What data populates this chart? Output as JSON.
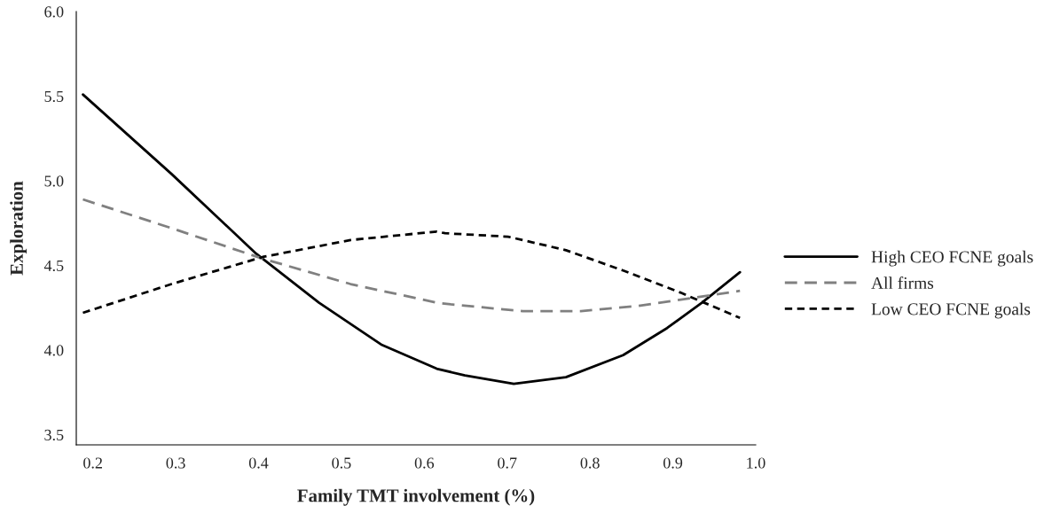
{
  "chart_data": {
    "type": "line",
    "xlabel": "Family TMT involvement (%)",
    "ylabel": "Exploration",
    "xlim": [
      0.18,
      1.0
    ],
    "ylim": [
      3.44,
      6.0
    ],
    "xticks": [
      0.2,
      0.3,
      0.4,
      0.5,
      0.6,
      0.7,
      0.8,
      0.9,
      {
        "value": 1.0,
        "label": "1.0"
      }
    ],
    "yticks": [
      3.5,
      {
        "value": 4.0,
        "label": "4.0"
      },
      4.5,
      {
        "value": 5.0,
        "label": "5.0"
      },
      5.5,
      {
        "value": 6.0,
        "label": "6.0"
      }
    ],
    "grid": false,
    "legend": "right",
    "marker": "none",
    "series": [
      {
        "name": "High CEO FCNE goals",
        "color": "#000000",
        "line_style": "solid",
        "x": [
          0.188,
          0.295,
          0.397,
          0.473,
          0.549,
          0.615,
          0.649,
          0.708,
          0.771,
          0.84,
          0.893,
          0.935,
          0.981
        ],
        "values": [
          5.51,
          5.04,
          4.57,
          4.28,
          4.03,
          3.89,
          3.85,
          3.8,
          3.84,
          3.97,
          4.13,
          4.28,
          4.46
        ]
      },
      {
        "name": "All firms",
        "color": "#808080",
        "line_style": "dashed",
        "x": [
          0.188,
          0.295,
          0.405,
          0.511,
          0.615,
          0.632,
          0.719,
          0.789,
          0.857,
          0.927,
          0.981
        ],
        "values": [
          4.89,
          4.72,
          4.54,
          4.39,
          4.28,
          4.27,
          4.23,
          4.23,
          4.26,
          4.31,
          4.35
        ]
      },
      {
        "name": "Low CEO FCNE goals",
        "color": "#000000",
        "line_style": "dashed",
        "x": [
          0.188,
          0.295,
          0.405,
          0.511,
          0.615,
          0.625,
          0.701,
          0.771,
          0.84,
          0.909,
          0.981
        ],
        "values": [
          4.22,
          4.39,
          4.55,
          4.65,
          4.7,
          4.69,
          4.67,
          4.59,
          4.47,
          4.34,
          4.19
        ]
      }
    ]
  }
}
